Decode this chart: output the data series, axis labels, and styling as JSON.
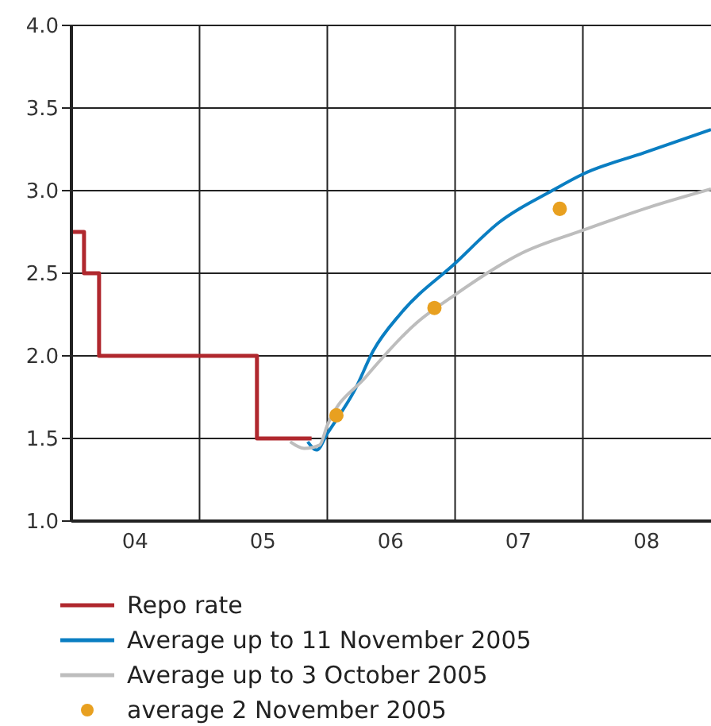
{
  "chart_data": {
    "type": "line",
    "xlim": [
      "2004-01-01",
      "2009-01-01"
    ],
    "ylim": [
      1.0,
      4.0
    ],
    "xticks": [
      {
        "value": "2004-07-01",
        "label": "04"
      },
      {
        "value": "2005-01-01",
        "label": null
      },
      {
        "value": "2005-07-01",
        "label": "05"
      },
      {
        "value": "2006-01-01",
        "label": null
      },
      {
        "value": "2006-07-01",
        "label": "06"
      },
      {
        "value": "2007-01-01",
        "label": null
      },
      {
        "value": "2007-07-01",
        "label": "07"
      },
      {
        "value": "2008-01-01",
        "label": null
      },
      {
        "value": "2008-07-01",
        "label": "08"
      }
    ],
    "yticks": [
      {
        "value": 1,
        "label": "1.0"
      },
      1.5,
      {
        "value": 2,
        "label": "2.0"
      },
      2.5,
      {
        "value": 3,
        "label": "3.0"
      },
      3.5,
      {
        "value": 4,
        "label": "4.0"
      }
    ],
    "grid": true,
    "legend": "bottom",
    "series": [
      {
        "name": "Repo rate",
        "type": "step",
        "color": "#b0282e",
        "x": [
          "2004-01-01",
          "2004-02-06",
          "2004-03-20",
          "2005-06-14",
          "2005-11-17"
        ],
        "values": [
          2.75,
          2.5,
          2.0,
          1.5,
          1.5
        ]
      },
      {
        "name": "Average up to 11 November 2005",
        "color": "#0a7ec2",
        "x": [
          "2005-11-06",
          "2005-12-02",
          "2006-01-01",
          "2006-03-22",
          "2006-05-12",
          "2006-07-31",
          "2007-01-01",
          "2007-05-08",
          "2007-10-05",
          "2008-01-01",
          "2008-06-25",
          "2009-01-01"
        ],
        "values": [
          1.48,
          1.43,
          1.53,
          1.8,
          2.03,
          2.26,
          2.56,
          2.81,
          3.0,
          3.1,
          3.23,
          3.37
        ]
      },
      {
        "name": "Average up to 3 October 2005",
        "color": "#bdbdbd",
        "x": [
          "2005-09-17",
          "2005-10-27",
          "2005-12-10",
          "2006-01-01",
          "2006-04-20",
          "2006-09-13",
          "2007-01-01",
          "2007-07-09",
          "2008-01-01",
          "2008-07-09",
          "2009-01-01"
        ],
        "values": [
          1.48,
          1.44,
          1.46,
          1.58,
          1.87,
          2.2,
          2.37,
          2.62,
          2.76,
          2.9,
          3.01
        ]
      },
      {
        "name": "average 2 November 2005",
        "type": "scatter",
        "color": "#e8a020",
        "x": [
          "2006-01-27",
          "2006-11-03",
          "2007-10-27"
        ],
        "values": [
          1.64,
          2.29,
          2.89
        ]
      }
    ]
  }
}
